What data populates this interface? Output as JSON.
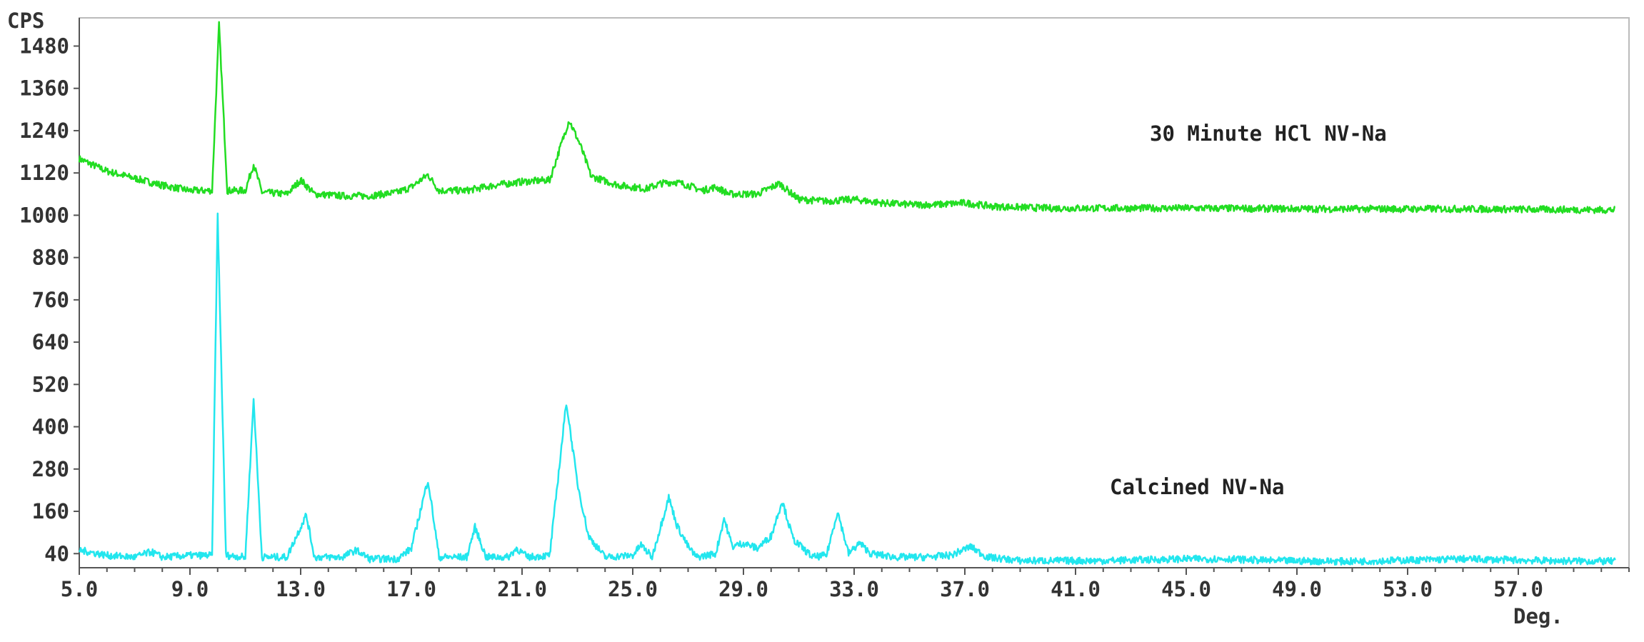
{
  "chart_data": {
    "type": "line",
    "ylabel": "CPS",
    "xlabel": "Deg.",
    "xlim": [
      5.0,
      61.0
    ],
    "ylim": [
      0,
      1560
    ],
    "x_ticks": [
      "5.0",
      "9.0",
      "13.0",
      "17.0",
      "21.0",
      "25.0",
      "29.0",
      "33.0",
      "37.0",
      "41.0",
      "45.0",
      "49.0",
      "53.0",
      "57.0"
    ],
    "x_tick_values": [
      5,
      9,
      13,
      17,
      21,
      25,
      29,
      33,
      37,
      41,
      45,
      49,
      53,
      57
    ],
    "y_ticks": [
      "40",
      "160",
      "280",
      "400",
      "520",
      "640",
      "760",
      "880",
      "1000",
      "1120",
      "1240",
      "1360",
      "1480"
    ],
    "y_tick_values": [
      40,
      160,
      280,
      400,
      520,
      640,
      760,
      880,
      1000,
      1120,
      1240,
      1360,
      1480
    ],
    "grid": false,
    "series": [
      {
        "name": "30 Minute HCl NV-Na",
        "color": "#22dd22",
        "points": [
          [
            5.0,
            1160
          ],
          [
            6.0,
            1125
          ],
          [
            7.0,
            1105
          ],
          [
            8.0,
            1085
          ],
          [
            9.0,
            1070
          ],
          [
            9.8,
            1070
          ],
          [
            10.05,
            1540
          ],
          [
            10.35,
            1070
          ],
          [
            11.0,
            1070
          ],
          [
            11.3,
            1145
          ],
          [
            11.6,
            1065
          ],
          [
            12.5,
            1060
          ],
          [
            13.0,
            1100
          ],
          [
            13.5,
            1060
          ],
          [
            14.5,
            1055
          ],
          [
            15.5,
            1055
          ],
          [
            16.5,
            1065
          ],
          [
            17.0,
            1080
          ],
          [
            17.6,
            1115
          ],
          [
            18.0,
            1070
          ],
          [
            19.0,
            1070
          ],
          [
            20.0,
            1085
          ],
          [
            21.0,
            1095
          ],
          [
            22.0,
            1100
          ],
          [
            22.7,
            1270
          ],
          [
            23.1,
            1200
          ],
          [
            23.5,
            1110
          ],
          [
            24.5,
            1085
          ],
          [
            25.5,
            1075
          ],
          [
            26.0,
            1090
          ],
          [
            26.5,
            1095
          ],
          [
            27.0,
            1085
          ],
          [
            27.5,
            1070
          ],
          [
            28.0,
            1080
          ],
          [
            28.5,
            1060
          ],
          [
            29.5,
            1060
          ],
          [
            30.3,
            1090
          ],
          [
            31.0,
            1045
          ],
          [
            32.0,
            1040
          ],
          [
            33.0,
            1045
          ],
          [
            34.0,
            1035
          ],
          [
            35.0,
            1030
          ],
          [
            36.0,
            1030
          ],
          [
            37.0,
            1035
          ],
          [
            38.0,
            1025
          ],
          [
            40.0,
            1020
          ],
          [
            45.0,
            1020
          ],
          [
            50.0,
            1018
          ],
          [
            55.0,
            1018
          ],
          [
            60.5,
            1015
          ]
        ]
      },
      {
        "name": "Calcined NV-Na",
        "color": "#22e6ee",
        "points": [
          [
            5.0,
            50
          ],
          [
            6.0,
            35
          ],
          [
            7.0,
            30
          ],
          [
            7.6,
            45
          ],
          [
            8.0,
            30
          ],
          [
            9.0,
            35
          ],
          [
            9.8,
            35
          ],
          [
            10.0,
            1000
          ],
          [
            10.3,
            35
          ],
          [
            11.0,
            30
          ],
          [
            11.3,
            480
          ],
          [
            11.6,
            30
          ],
          [
            12.5,
            30
          ],
          [
            13.2,
            150
          ],
          [
            13.5,
            30
          ],
          [
            14.5,
            30
          ],
          [
            15.0,
            50
          ],
          [
            15.5,
            25
          ],
          [
            16.5,
            25
          ],
          [
            17.0,
            55
          ],
          [
            17.6,
            250
          ],
          [
            18.0,
            30
          ],
          [
            19.0,
            30
          ],
          [
            19.3,
            115
          ],
          [
            19.7,
            30
          ],
          [
            20.5,
            30
          ],
          [
            20.8,
            55
          ],
          [
            21.2,
            30
          ],
          [
            22.0,
            35
          ],
          [
            22.6,
            470
          ],
          [
            23.0,
            240
          ],
          [
            23.4,
            90
          ],
          [
            24.0,
            30
          ],
          [
            25.0,
            35
          ],
          [
            25.3,
            65
          ],
          [
            25.7,
            30
          ],
          [
            26.3,
            200
          ],
          [
            26.6,
            120
          ],
          [
            27.0,
            60
          ],
          [
            27.3,
            30
          ],
          [
            28.0,
            40
          ],
          [
            28.3,
            140
          ],
          [
            28.6,
            60
          ],
          [
            29.0,
            70
          ],
          [
            29.5,
            55
          ],
          [
            30.0,
            90
          ],
          [
            30.4,
            190
          ],
          [
            30.8,
            80
          ],
          [
            31.5,
            30
          ],
          [
            32.0,
            35
          ],
          [
            32.4,
            160
          ],
          [
            32.8,
            40
          ],
          [
            33.2,
            70
          ],
          [
            33.6,
            40
          ],
          [
            34.5,
            30
          ],
          [
            35.5,
            30
          ],
          [
            36.5,
            35
          ],
          [
            37.2,
            60
          ],
          [
            37.8,
            30
          ],
          [
            39.0,
            20
          ],
          [
            42.0,
            20
          ],
          [
            45.0,
            25
          ],
          [
            46.5,
            25
          ],
          [
            48.0,
            20
          ],
          [
            51.0,
            18
          ],
          [
            55.0,
            25
          ],
          [
            58.0,
            20
          ],
          [
            60.5,
            18
          ]
        ]
      }
    ]
  }
}
